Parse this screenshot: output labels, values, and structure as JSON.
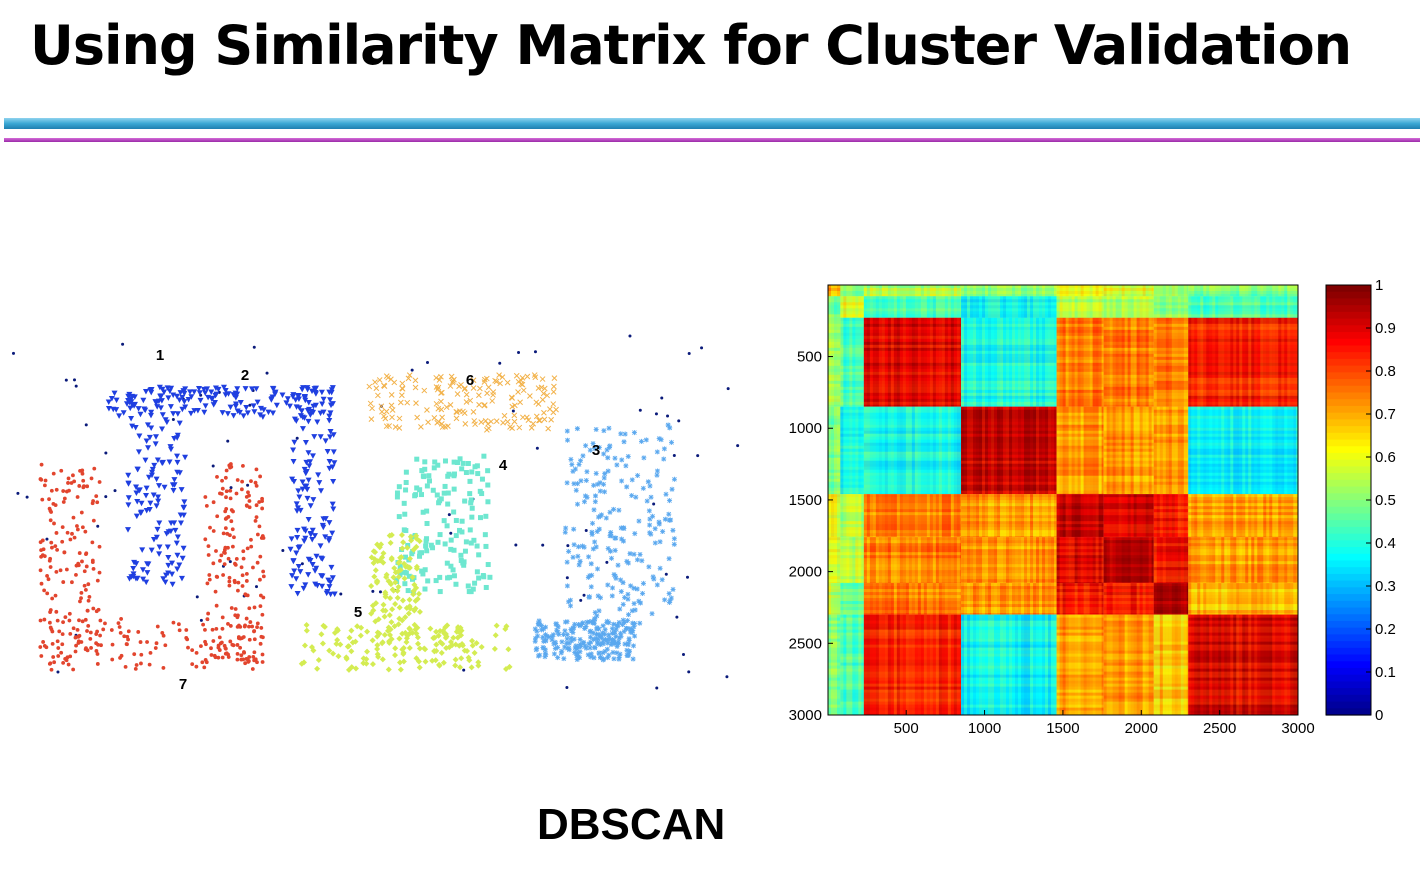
{
  "slide": {
    "title": "Using Similarity Matrix for Cluster Validation",
    "caption": "DBSCAN"
  },
  "colors": {
    "rule_cyan": "#3aa8d4",
    "rule_magenta": "#b53cc0"
  },
  "chart_data": [
    {
      "type": "scatter",
      "title": "",
      "xlabel": "",
      "ylabel": "",
      "axes_visible": false,
      "grid": false,
      "clusters": [
        {
          "label": "1",
          "color": "#0a1a7a",
          "marker": "dot",
          "role": "noise"
        },
        {
          "label": "2",
          "color": "#1f3fe0",
          "marker": "triangle-down"
        },
        {
          "label": "3",
          "color": "#5aa8ef",
          "marker": "asterisk"
        },
        {
          "label": "4",
          "color": "#6ee7d0",
          "marker": "square"
        },
        {
          "label": "5",
          "color": "#d4ec52",
          "marker": "diamond"
        },
        {
          "label": "6",
          "color": "#f2b24a",
          "marker": "x"
        },
        {
          "label": "7",
          "color": "#e2452e",
          "marker": "dot"
        }
      ]
    },
    {
      "type": "heatmap",
      "title": "",
      "x_range": [
        1,
        3000
      ],
      "y_range": [
        1,
        3000
      ],
      "y_reversed": true,
      "xticks": [
        500,
        1000,
        1500,
        2000,
        2500,
        3000
      ],
      "yticks": [
        500,
        1000,
        1500,
        2000,
        2500,
        3000
      ],
      "colormap": "jet",
      "colorbar": {
        "range": [
          0,
          1
        ],
        "ticks": [
          "0",
          "0.1",
          "0.2",
          "0.3",
          "0.4",
          "0.5",
          "0.6",
          "0.7",
          "0.8",
          "0.9",
          "1"
        ]
      },
      "block_boundaries": [
        1,
        80,
        230,
        850,
        1460,
        1760,
        2080,
        2300,
        3000
      ],
      "block_similarity": [
        [
          0.7,
          0.5,
          0.55,
          0.5,
          0.6,
          0.6,
          0.55,
          0.5
        ],
        [
          0.5,
          0.6,
          0.45,
          0.4,
          0.55,
          0.55,
          0.5,
          0.45
        ],
        [
          0.55,
          0.45,
          0.9,
          0.4,
          0.75,
          0.75,
          0.75,
          0.85
        ],
        [
          0.5,
          0.4,
          0.4,
          0.93,
          0.72,
          0.72,
          0.72,
          0.38
        ],
        [
          0.6,
          0.55,
          0.75,
          0.72,
          0.94,
          0.9,
          0.86,
          0.72
        ],
        [
          0.6,
          0.55,
          0.75,
          0.72,
          0.9,
          0.95,
          0.86,
          0.72
        ],
        [
          0.55,
          0.5,
          0.75,
          0.72,
          0.86,
          0.86,
          0.97,
          0.68
        ],
        [
          0.5,
          0.45,
          0.85,
          0.38,
          0.72,
          0.72,
          0.68,
          0.9
        ]
      ]
    }
  ]
}
